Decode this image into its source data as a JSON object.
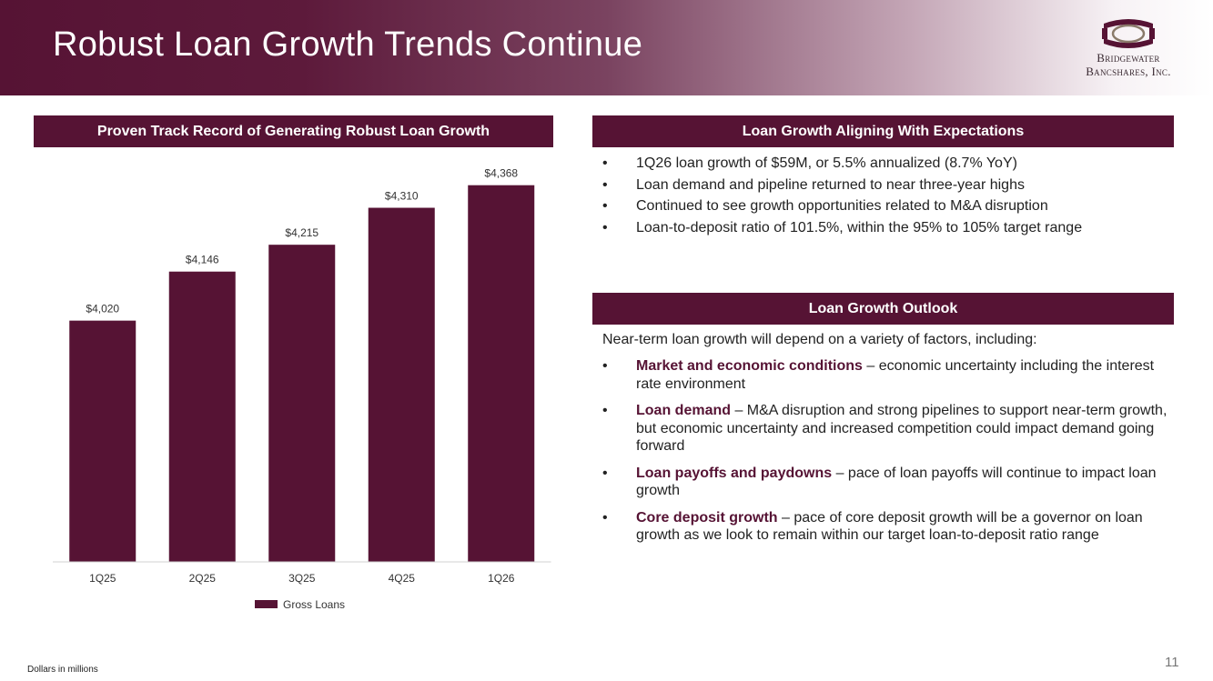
{
  "header": {
    "title": "Robust Loan Growth Trends Continue",
    "logo_line1": "Bridgewater",
    "logo_line2": "Bancshares, Inc."
  },
  "left": {
    "section_title": "Proven Track Record of Generating Robust Loan Growth"
  },
  "chart_data": {
    "type": "bar",
    "categories": [
      "1Q25",
      "2Q25",
      "3Q25",
      "4Q25",
      "1Q26"
    ],
    "series": [
      {
        "name": "Gross Loans",
        "values": [
          4020,
          4146,
          4215,
          4310,
          4368
        ]
      }
    ],
    "data_labels": [
      "$4,020",
      "$4,146",
      "$4,215",
      "$4,310",
      "$4,368"
    ],
    "ylim": [
      3400,
      4400
    ],
    "grid": false,
    "legend_position": "bottom",
    "bar_color": "#561334"
  },
  "right_top": {
    "section_title": "Loan Growth Aligning With Expectations",
    "bullets": [
      "1Q26 loan growth of $59M, or 5.5% annualized (8.7% YoY)",
      "Loan demand and pipeline returned to near three-year highs",
      "Continued to see growth opportunities related to M&A disruption",
      "Loan-to-deposit ratio of 101.5%, within the 95% to 105% target range"
    ]
  },
  "right_bottom": {
    "section_title": "Loan Growth Outlook",
    "intro": "Near-term loan growth will depend on a variety of factors, including:",
    "factors": [
      {
        "title": "Market and economic conditions",
        "text": " – economic uncertainty including the interest rate environment"
      },
      {
        "title": "Loan demand",
        "text": " – M&A disruption and strong pipelines to support near-term growth, but economic uncertainty and increased competition could impact demand going forward"
      },
      {
        "title": "Loan payoffs and paydowns",
        "text": " – pace of loan payoffs will continue to impact loan growth"
      },
      {
        "title": "Core deposit growth",
        "text": " – pace of core deposit growth will be a governor on loan growth as we look to remain within our target loan-to-deposit ratio range"
      }
    ]
  },
  "footer": {
    "note": "Dollars in millions",
    "page": "11"
  },
  "colors": {
    "brand": "#561334"
  }
}
